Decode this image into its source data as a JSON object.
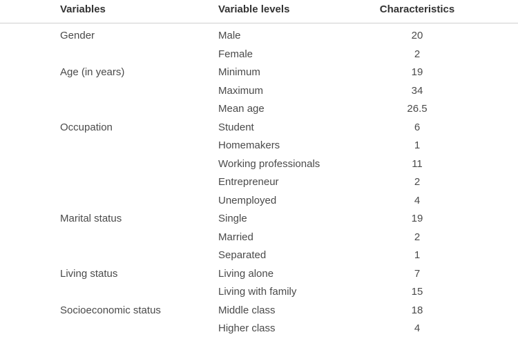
{
  "table": {
    "headers": {
      "variables": "Variables",
      "variable_levels": "Variable levels",
      "characteristics": "Characteristics"
    },
    "rows": [
      {
        "variable": "Gender",
        "level": "Male",
        "value": "20"
      },
      {
        "variable": "",
        "level": "Female",
        "value": "2"
      },
      {
        "variable": "Age (in years)",
        "level": "Minimum",
        "value": "19"
      },
      {
        "variable": "",
        "level": "Maximum",
        "value": "34"
      },
      {
        "variable": "",
        "level": "Mean age",
        "value": "26.5"
      },
      {
        "variable": "Occupation",
        "level": "Student",
        "value": "6"
      },
      {
        "variable": "",
        "level": "Homemakers",
        "value": "1"
      },
      {
        "variable": "",
        "level": "Working professionals",
        "value": "11"
      },
      {
        "variable": "",
        "level": "Entrepreneur",
        "value": "2"
      },
      {
        "variable": "",
        "level": "Unemployed",
        "value": "4"
      },
      {
        "variable": "Marital status",
        "level": "Single",
        "value": "19"
      },
      {
        "variable": "",
        "level": "Married",
        "value": "2"
      },
      {
        "variable": "",
        "level": "Separated",
        "value": "1"
      },
      {
        "variable": "Living status",
        "level": "Living alone",
        "value": "7"
      },
      {
        "variable": "",
        "level": "Living with family",
        "value": "15"
      },
      {
        "variable": "Socioeconomic status",
        "level": "Middle class",
        "value": "18"
      },
      {
        "variable": "",
        "level": "Higher class",
        "value": "4"
      }
    ]
  }
}
